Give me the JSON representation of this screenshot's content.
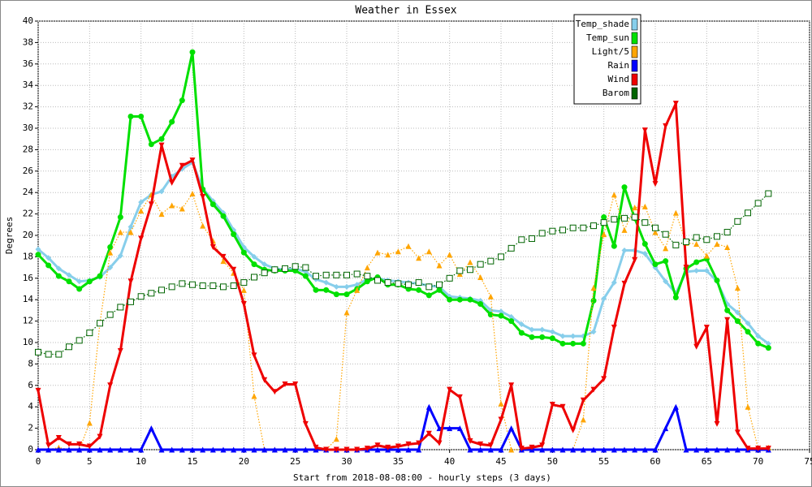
{
  "chart_data": {
    "type": "line",
    "title": "Weather in Essex",
    "xlabel": "Start from 2018-08-08:00 - hourly steps (3 days)",
    "ylabel": "Degrees",
    "x": [
      0,
      1,
      2,
      3,
      4,
      5,
      6,
      7,
      8,
      9,
      10,
      11,
      12,
      13,
      14,
      15,
      16,
      17,
      18,
      19,
      20,
      21,
      22,
      23,
      24,
      25,
      26,
      27,
      28,
      29,
      30,
      31,
      32,
      33,
      34,
      35,
      36,
      37,
      38,
      39,
      40,
      41,
      42,
      43,
      44,
      45,
      46,
      47,
      48,
      49,
      50,
      51,
      52,
      53,
      54,
      55,
      56,
      57,
      58,
      59,
      60,
      61,
      62,
      63,
      64,
      65,
      66,
      67,
      68,
      69,
      70,
      71
    ],
    "xlim": [
      0,
      75
    ],
    "xticks": [
      0,
      5,
      10,
      15,
      20,
      25,
      30,
      35,
      40,
      45,
      50,
      55,
      60,
      65,
      70,
      75
    ],
    "ylim": [
      0,
      40
    ],
    "yticks": [
      0,
      2,
      4,
      6,
      8,
      10,
      12,
      14,
      16,
      18,
      20,
      22,
      24,
      26,
      28,
      30,
      32,
      34,
      36,
      38,
      40
    ],
    "grid": true,
    "legend": "upper right",
    "series": [
      {
        "name": "Temp_shade",
        "color": "#87ceeb",
        "line": "solid",
        "marker": "diamond",
        "values": [
          18.7,
          17.9,
          16.9,
          16.3,
          15.7,
          15.8,
          16.1,
          17.0,
          18.1,
          20.8,
          23.1,
          23.8,
          24.1,
          25.5,
          26.2,
          26.8,
          24.4,
          23.2,
          22.1,
          20.5,
          18.9,
          18.0,
          17.3,
          16.9,
          16.8,
          16.9,
          16.6,
          15.9,
          15.6,
          15.2,
          15.2,
          15.4,
          15.9,
          16.0,
          15.8,
          15.7,
          15.6,
          15.5,
          15.3,
          15.2,
          14.3,
          14.2,
          14.1,
          13.9,
          13.0,
          12.9,
          12.4,
          11.7,
          11.2,
          11.2,
          11.0,
          10.6,
          10.6,
          10.6,
          11.0,
          14.1,
          15.6,
          18.6,
          18.6,
          18.3,
          17.0,
          15.7,
          14.6,
          16.6,
          16.7,
          16.7,
          15.7,
          13.6,
          12.8,
          11.8,
          10.6,
          9.9
        ]
      },
      {
        "name": "Temp_sun",
        "color": "#00e000",
        "line": "solid",
        "marker": "circle",
        "values": [
          18.2,
          17.2,
          16.2,
          15.7,
          15.0,
          15.7,
          16.2,
          18.9,
          21.7,
          31.1,
          31.1,
          28.5,
          29.0,
          30.6,
          32.6,
          37.1,
          24.3,
          22.9,
          21.8,
          20.1,
          18.4,
          17.3,
          16.8,
          16.7,
          16.7,
          16.7,
          16.2,
          14.9,
          14.9,
          14.5,
          14.5,
          15.0,
          15.7,
          16.1,
          15.4,
          15.4,
          15.0,
          14.9,
          14.4,
          14.9,
          14.0,
          14.0,
          14.0,
          13.6,
          12.6,
          12.5,
          12.0,
          10.9,
          10.5,
          10.5,
          10.4,
          9.9,
          9.9,
          9.9,
          13.9,
          21.7,
          19.0,
          24.5,
          21.6,
          19.2,
          17.3,
          17.6,
          14.2,
          16.9,
          17.5,
          17.8,
          15.8,
          13.0,
          12.0,
          11.0,
          9.9,
          9.5
        ]
      },
      {
        "name": "Light/5",
        "color": "#ffa500",
        "line": "dotted",
        "marker": "triangle-up",
        "values": [
          0,
          0,
          0.2,
          0,
          0,
          2.5,
          11.8,
          18.4,
          20.3,
          20.3,
          22.3,
          23.8,
          22.0,
          22.8,
          22.5,
          23.9,
          20.9,
          19.5,
          17.6,
          16.5,
          14.9,
          5.0,
          0,
          0,
          0,
          0,
          0,
          0,
          0,
          1.0,
          12.8,
          14.9,
          17.0,
          18.4,
          18.2,
          18.5,
          19.0,
          17.9,
          18.5,
          17.2,
          18.2,
          16.4,
          17.5,
          16.1,
          14.3,
          4.3,
          0,
          0,
          0,
          0,
          0,
          0,
          0,
          2.8,
          15.1,
          20.1,
          23.8,
          20.5,
          22.6,
          22.7,
          20.3,
          18.8,
          22.1,
          19.3,
          19.2,
          18.1,
          19.2,
          18.9,
          15.1,
          4.0,
          0.1,
          0.2
        ]
      },
      {
        "name": "Rain",
        "color": "#0000ff",
        "line": "solid",
        "marker": "triangle-up",
        "values": [
          0,
          0,
          0,
          0,
          0,
          0,
          0,
          0,
          0,
          0,
          0,
          2,
          0,
          0,
          0,
          0,
          0,
          0,
          0,
          0,
          0,
          0,
          0,
          0,
          0,
          0,
          0,
          0,
          0,
          0,
          0,
          0,
          0,
          0,
          0,
          0,
          0,
          0,
          4,
          2,
          2,
          2,
          0,
          0,
          0,
          0,
          2,
          0,
          0,
          0,
          0,
          0,
          0,
          0,
          0,
          0,
          0,
          0,
          0,
          0,
          0,
          2,
          4,
          0,
          0,
          0,
          0,
          0,
          0,
          0,
          0,
          0
        ]
      },
      {
        "name": "Wind",
        "color": "#ee0000",
        "line": "solid",
        "marker": "triangle-down",
        "values": [
          5.5,
          0.4,
          1.1,
          0.5,
          0.5,
          0.3,
          1.2,
          6.0,
          9.2,
          15.7,
          19.7,
          22.9,
          28.4,
          24.9,
          26.5,
          27.0,
          23.6,
          18.9,
          18.0,
          16.8,
          13.6,
          8.8,
          6.5,
          5.4,
          6.1,
          6.1,
          2.4,
          0.2,
          0,
          0,
          0,
          0,
          0.1,
          0.4,
          0.2,
          0.3,
          0.5,
          0.6,
          1.5,
          0.6,
          5.6,
          4.9,
          0.8,
          0.5,
          0.4,
          2.8,
          6.0,
          0.1,
          0.2,
          0.4,
          4.2,
          4.0,
          1.8,
          4.6,
          5.6,
          6.6,
          11.4,
          15.5,
          17.7,
          29.8,
          24.8,
          30.2,
          32.3,
          17.0,
          9.6,
          11.4,
          2.4,
          12.1,
          1.6,
          0.1,
          0.1,
          0.1
        ]
      },
      {
        "name": "Barom",
        "color": "#006400",
        "line": "dotted",
        "marker": "square-open",
        "values": [
          9.1,
          8.9,
          8.9,
          9.6,
          10.2,
          10.9,
          11.8,
          12.6,
          13.3,
          13.8,
          14.3,
          14.6,
          14.9,
          15.2,
          15.5,
          15.4,
          15.3,
          15.3,
          15.2,
          15.3,
          15.6,
          16.1,
          16.5,
          16.8,
          16.9,
          17.1,
          17.0,
          16.2,
          16.3,
          16.3,
          16.3,
          16.4,
          16.2,
          15.8,
          15.6,
          15.5,
          15.4,
          15.6,
          15.2,
          15.4,
          16.0,
          16.7,
          16.8,
          17.3,
          17.6,
          18.0,
          18.8,
          19.6,
          19.7,
          20.2,
          20.4,
          20.5,
          20.7,
          20.7,
          20.9,
          21.2,
          21.5,
          21.6,
          21.7,
          21.2,
          20.7,
          20.1,
          19.1,
          19.4,
          19.8,
          19.6,
          19.9,
          20.3,
          21.3,
          22.1,
          23.0,
          23.9
        ]
      }
    ]
  }
}
